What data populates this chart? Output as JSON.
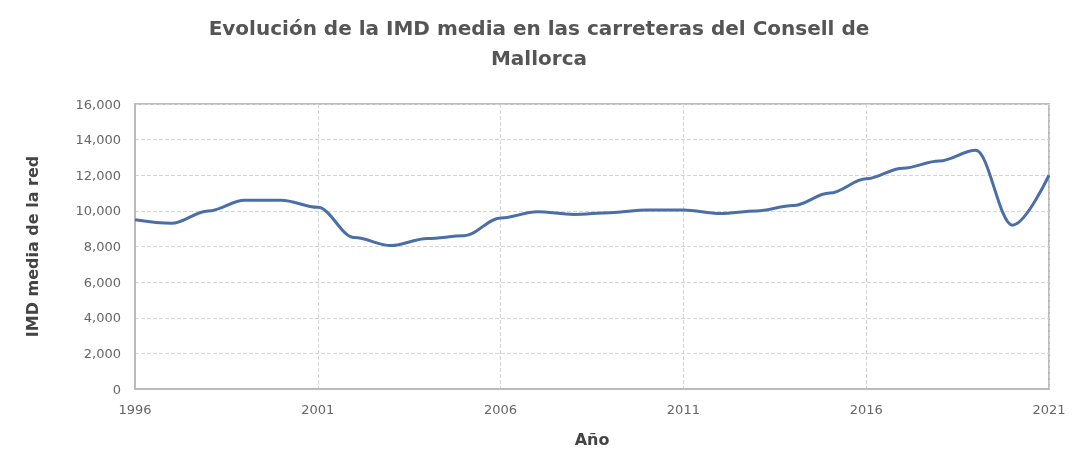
{
  "chart_data": {
    "type": "line",
    "title": "Evolución de la IMD media en las carreteras del Consell de\nMallorca",
    "xlabel": "Año",
    "ylabel": "IMD media de la red",
    "x": [
      1996,
      1997,
      1998,
      1999,
      2000,
      2001,
      2002,
      2003,
      2004,
      2005,
      2006,
      2007,
      2008,
      2009,
      2010,
      2011,
      2012,
      2013,
      2014,
      2015,
      2016,
      2017,
      2018,
      2019,
      2020,
      2021
    ],
    "series": [
      {
        "color": "#4a6fa8",
        "values": [
          9500,
          9300,
          10000,
          10600,
          10600,
          10200,
          8500,
          8050,
          8450,
          8600,
          9600,
          9950,
          9800,
          9900,
          10050,
          10050,
          9850,
          10000,
          10300,
          11000,
          11800,
          12400,
          12800,
          13400,
          9200,
          12000
        ]
      }
    ],
    "xlim": [
      1996,
      2021
    ],
    "xticks": [
      1996,
      2001,
      2006,
      2011,
      2016,
      2021
    ],
    "ylim": [
      0,
      16000
    ],
    "yticks": [
      0,
      {
        "value": 2000,
        "label": "2,000"
      },
      {
        "value": 4000,
        "label": "4,000"
      },
      {
        "value": 6000,
        "label": "6,000"
      },
      {
        "value": 8000,
        "label": "8,000"
      },
      {
        "value": 10000,
        "label": "10,000"
      },
      {
        "value": 12000,
        "label": "12,000"
      },
      {
        "value": 14000,
        "label": "14,000"
      },
      {
        "value": 16000,
        "label": "16,000"
      }
    ],
    "grid": true,
    "marker": "none",
    "line_style": "solid"
  }
}
